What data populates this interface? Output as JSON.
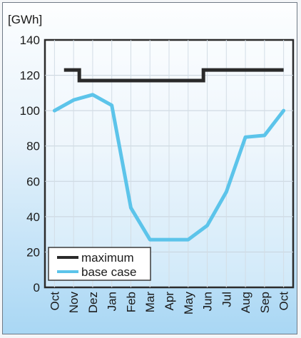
{
  "chart_data": {
    "type": "line",
    "title": "",
    "xlabel": "",
    "ylabel": "[GWh]",
    "ylim": [
      0,
      140
    ],
    "yticks": [
      0,
      20,
      40,
      60,
      80,
      100,
      120,
      140
    ],
    "categories": [
      "Oct",
      "Nov",
      "Dez",
      "Jan",
      "Feb",
      "Mar",
      "Apr",
      "May",
      "Jun",
      "Jul",
      "Aug",
      "Sep",
      "Oct"
    ],
    "grid": true,
    "legend_position": "bottom-left",
    "series": [
      {
        "name": "maximum",
        "color": "#2a2a2a",
        "step_segments": [
          {
            "from": 1,
            "to": 1.8,
            "value": 123
          },
          {
            "from": 1.8,
            "to": 8.3,
            "value": 117
          },
          {
            "from": 8.3,
            "to": 12.5,
            "value": 123
          }
        ]
      },
      {
        "name": "base case",
        "color": "#5cc4ea",
        "values": [
          100,
          106,
          109,
          103,
          45,
          27,
          27,
          27,
          35,
          54,
          85,
          86,
          100
        ]
      }
    ]
  }
}
